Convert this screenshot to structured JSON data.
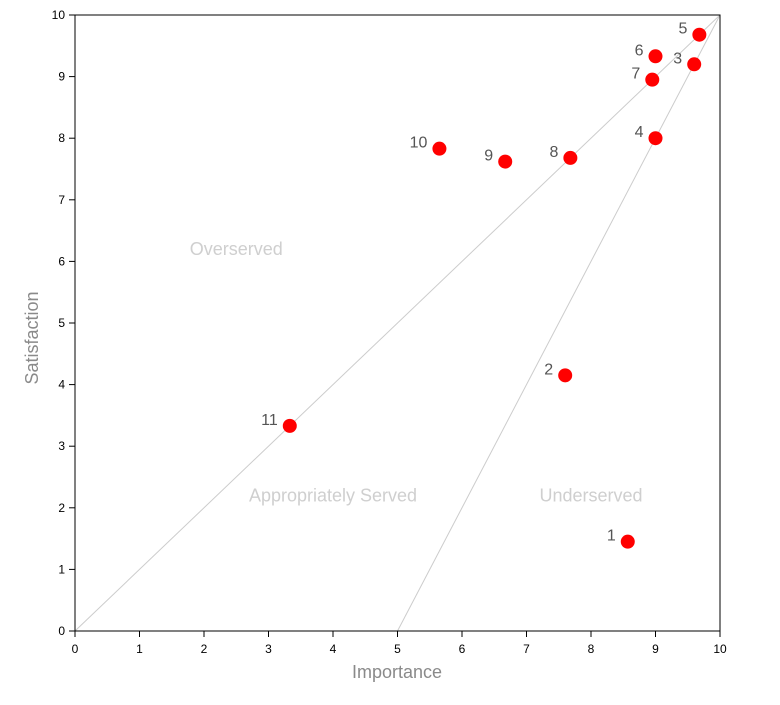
{
  "chart_data": {
    "type": "scatter",
    "title": "",
    "xlabel": "Importance",
    "ylabel": "Satisfaction",
    "xlim": [
      0,
      10
    ],
    "ylim": [
      0,
      10
    ],
    "xticks": [
      0,
      1,
      2,
      3,
      4,
      5,
      6,
      7,
      8,
      9,
      10
    ],
    "yticks": [
      0,
      1,
      2,
      3,
      4,
      5,
      6,
      7,
      8,
      9,
      10
    ],
    "grid": false,
    "reference_lines": [
      {
        "name": "diagonal",
        "from": [
          0,
          0
        ],
        "to": [
          10,
          10
        ]
      },
      {
        "name": "opportunity-boundary",
        "from": [
          5,
          0
        ],
        "to": [
          10,
          10
        ]
      }
    ],
    "regions": [
      {
        "label": "Overserved",
        "x": 2.5,
        "y": 6.1
      },
      {
        "label": "Appropriately Served",
        "x": 4.0,
        "y": 2.1
      },
      {
        "label": "Underserved",
        "x": 8.0,
        "y": 2.1
      }
    ],
    "points": [
      {
        "label": "1",
        "x": 8.57,
        "y": 1.45
      },
      {
        "label": "2",
        "x": 7.6,
        "y": 4.15
      },
      {
        "label": "3",
        "x": 9.6,
        "y": 9.2
      },
      {
        "label": "4",
        "x": 9.0,
        "y": 8.0
      },
      {
        "label": "5",
        "x": 9.68,
        "y": 9.68
      },
      {
        "label": "6",
        "x": 9.0,
        "y": 9.33
      },
      {
        "label": "7",
        "x": 8.95,
        "y": 8.95
      },
      {
        "label": "8",
        "x": 7.68,
        "y": 7.68
      },
      {
        "label": "9",
        "x": 6.67,
        "y": 7.62
      },
      {
        "label": "10",
        "x": 5.65,
        "y": 7.83
      },
      {
        "label": "11",
        "x": 3.33,
        "y": 3.33
      }
    ]
  }
}
